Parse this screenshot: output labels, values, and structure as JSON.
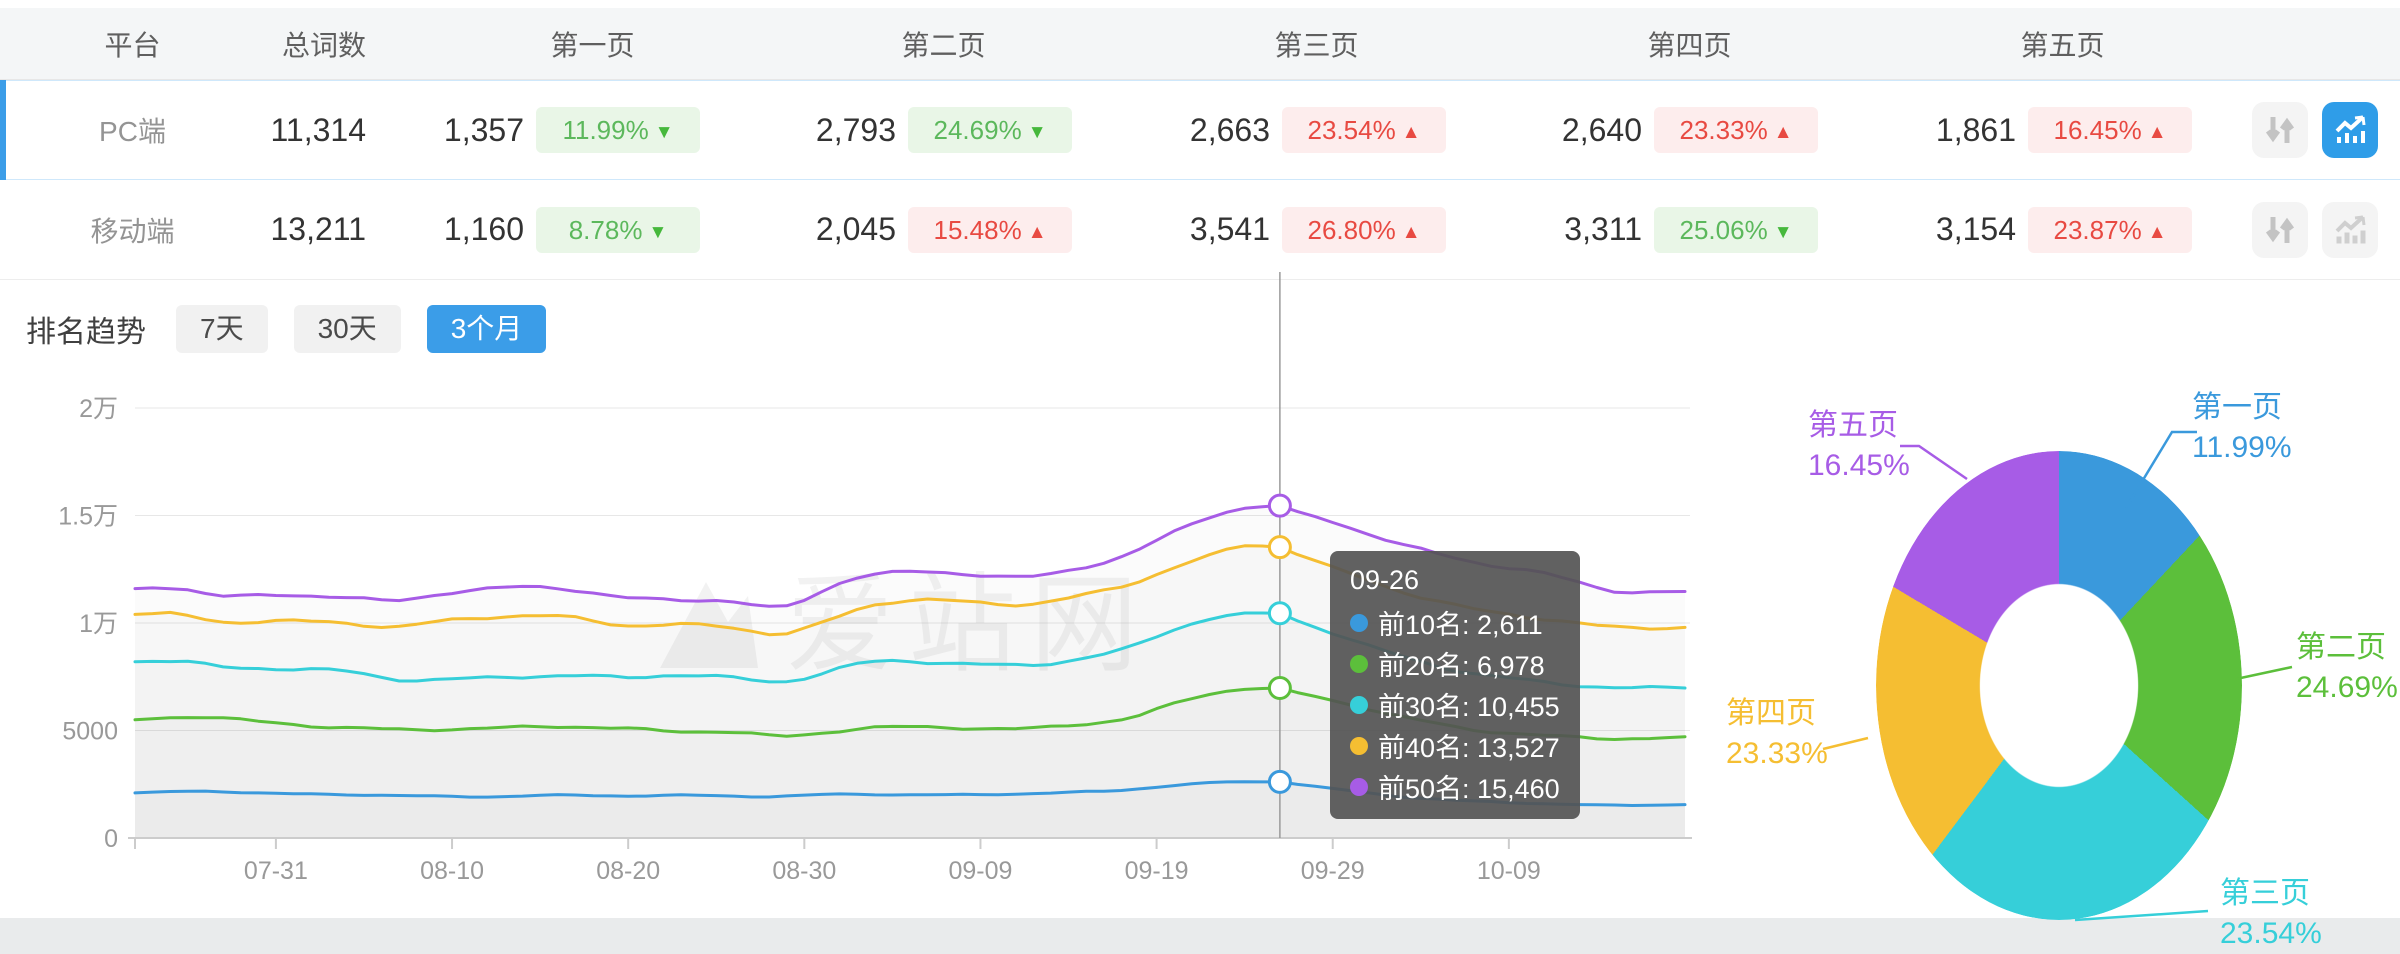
{
  "table": {
    "headers": [
      "平台",
      "总词数",
      "第一页",
      "第二页",
      "第三页",
      "第四页",
      "第五页"
    ],
    "rows": [
      {
        "platform": "PC端",
        "total": "11,314",
        "selected": true,
        "chart_active": true,
        "pages": [
          {
            "count": "1,357",
            "pct": "11.99%",
            "arrow": "▼",
            "tone": "green"
          },
          {
            "count": "2,793",
            "pct": "24.69%",
            "arrow": "▼",
            "tone": "green"
          },
          {
            "count": "2,663",
            "pct": "23.54%",
            "arrow": "▲",
            "tone": "red"
          },
          {
            "count": "2,640",
            "pct": "23.33%",
            "arrow": "▲",
            "tone": "red"
          },
          {
            "count": "1,861",
            "pct": "16.45%",
            "arrow": "▲",
            "tone": "red"
          }
        ]
      },
      {
        "platform": "移动端",
        "total": "13,211",
        "selected": false,
        "chart_active": false,
        "pages": [
          {
            "count": "1,160",
            "pct": "8.78%",
            "arrow": "▼",
            "tone": "green"
          },
          {
            "count": "2,045",
            "pct": "15.48%",
            "arrow": "▲",
            "tone": "red"
          },
          {
            "count": "3,541",
            "pct": "26.80%",
            "arrow": "▲",
            "tone": "red"
          },
          {
            "count": "3,311",
            "pct": "25.06%",
            "arrow": "▼",
            "tone": "green"
          },
          {
            "count": "3,154",
            "pct": "23.87%",
            "arrow": "▲",
            "tone": "red"
          }
        ]
      }
    ]
  },
  "trend": {
    "title": "排名趋势",
    "tabs": [
      {
        "label": "7天",
        "active": false
      },
      {
        "label": "30天",
        "active": false
      },
      {
        "label": "3个月",
        "active": true
      }
    ]
  },
  "tooltip": {
    "date": "09-26",
    "rows": [
      {
        "name": "前10名",
        "value": "2,611",
        "display": "前10名: 2,611"
      },
      {
        "name": "前20名",
        "value": "6,978",
        "display": "前20名: 6,978"
      },
      {
        "name": "前30名",
        "value": "10,455",
        "display": "前30名: 10,455"
      },
      {
        "name": "前40名",
        "value": "13,527",
        "display": "前40名: 13,527"
      },
      {
        "name": "前50名",
        "value": "15,460",
        "display": "前50名: 15,460"
      }
    ]
  },
  "chart_data": [
    {
      "type": "line",
      "title": "排名趋势 (3个月)",
      "watermark": "爱站网",
      "x_ticks": [
        "07-31",
        "08-10",
        "08-20",
        "08-30",
        "09-09",
        "09-19",
        "09-29",
        "10-09"
      ],
      "y_ticks": [
        "0",
        "5000",
        "1万",
        "1.5万",
        "2万"
      ],
      "ylim": [
        0,
        20000
      ],
      "days": 88,
      "tick_day0": 8,
      "tick_interval": 10,
      "crosshair_day": 65,
      "crosshair_date": "09-26",
      "grid": true,
      "legend_position": "tooltip",
      "series": [
        {
          "name": "前10名",
          "color": "#3a99dc",
          "wiggle": 18,
          "crosshair_value": 2611,
          "key_days": [
            0,
            4,
            8,
            12,
            16,
            20,
            24,
            28,
            32,
            36,
            40,
            44,
            48,
            52,
            56,
            59,
            62,
            65,
            68,
            72,
            76,
            80,
            84,
            88
          ],
          "key_values": [
            2100,
            2200,
            2060,
            2020,
            1960,
            1900,
            2010,
            1950,
            2000,
            1900,
            2060,
            2000,
            2010,
            2090,
            2200,
            2450,
            2640,
            2611,
            2300,
            1900,
            1700,
            1600,
            1500,
            1560
          ]
        },
        {
          "name": "前20名",
          "color": "#5cbf3b",
          "wiggle": 42,
          "crosshair_value": 6978,
          "key_days": [
            0,
            4,
            7,
            10,
            13,
            16,
            19,
            22,
            25,
            28,
            31,
            34,
            37,
            40,
            42,
            45,
            48,
            51,
            54,
            57,
            59,
            62,
            64,
            65,
            68,
            72,
            76,
            80,
            84,
            88
          ],
          "key_values": [
            5500,
            5700,
            5400,
            5200,
            5100,
            5000,
            5100,
            5150,
            5200,
            5100,
            4900,
            5000,
            4620,
            5000,
            5200,
            5150,
            5100,
            5060,
            5300,
            5600,
            6300,
            6900,
            7000,
            6978,
            6400,
            5600,
            5000,
            4750,
            4600,
            4680
          ]
        },
        {
          "name": "前30名",
          "color": "#36cfd9",
          "wiggle": 52,
          "crosshair_value": 10455,
          "key_days": [
            0,
            3,
            5,
            8,
            12,
            15,
            18,
            22,
            25,
            28,
            31,
            34,
            37,
            40,
            42,
            45,
            48,
            51,
            54,
            57,
            59,
            62,
            64,
            65,
            68,
            72,
            76,
            80,
            84,
            88
          ],
          "key_values": [
            8200,
            8300,
            7850,
            7900,
            7800,
            7300,
            7380,
            7500,
            7600,
            7400,
            7650,
            7450,
            7150,
            7900,
            8300,
            8200,
            8050,
            8000,
            8350,
            8900,
            9800,
            10400,
            10550,
            10455,
            9500,
            8400,
            7600,
            7250,
            6950,
            7000
          ]
        },
        {
          "name": "前40名",
          "color": "#f5be32",
          "wiggle": 52,
          "crosshair_value": 13527,
          "key_days": [
            0,
            3,
            5,
            8,
            12,
            15,
            18,
            22,
            25,
            28,
            31,
            34,
            37,
            40,
            42,
            45,
            48,
            51,
            54,
            57,
            59,
            62,
            63,
            65,
            68,
            72,
            76,
            80,
            84,
            88
          ],
          "key_values": [
            10400,
            10450,
            9950,
            10100,
            10050,
            9700,
            10200,
            10350,
            10300,
            9800,
            9950,
            9850,
            9300,
            10300,
            11000,
            11100,
            10950,
            10800,
            11300,
            11900,
            12600,
            13400,
            13800,
            13527,
            12600,
            11400,
            10600,
            10200,
            9750,
            9800
          ]
        },
        {
          "name": "前50名",
          "color": "#a75ce6",
          "wiggle": 52,
          "crosshair_value": 15460,
          "key_days": [
            0,
            3,
            5,
            8,
            12,
            15,
            18,
            22,
            25,
            28,
            31,
            34,
            37,
            39,
            41,
            45,
            48,
            51,
            54,
            57,
            59,
            62,
            64,
            65,
            68,
            72,
            76,
            80,
            84,
            88
          ],
          "key_values": [
            11600,
            11700,
            11150,
            11300,
            11250,
            10900,
            11500,
            11700,
            11600,
            11100,
            11050,
            11100,
            10450,
            11500,
            12300,
            12400,
            12250,
            12050,
            12600,
            13300,
            14300,
            15250,
            15500,
            15460,
            14700,
            13600,
            12800,
            12350,
            11400,
            11450
          ]
        }
      ]
    },
    {
      "type": "pie",
      "subtype": "donut",
      "slices": [
        {
          "label": "第一页",
          "pct": 11.99,
          "pct_text": "11.99%",
          "color": "#3a99dc"
        },
        {
          "label": "第二页",
          "pct": 24.69,
          "pct_text": "24.69%",
          "color": "#5cbf3b"
        },
        {
          "label": "第三页",
          "pct": 23.54,
          "pct_text": "23.54%",
          "color": "#36cfd9"
        },
        {
          "label": "第四页",
          "pct": 23.33,
          "pct_text": "23.33%",
          "color": "#f5be32"
        },
        {
          "label": "第五页",
          "pct": 16.45,
          "pct_text": "16.45%",
          "color": "#a75ce6"
        }
      ]
    }
  ]
}
